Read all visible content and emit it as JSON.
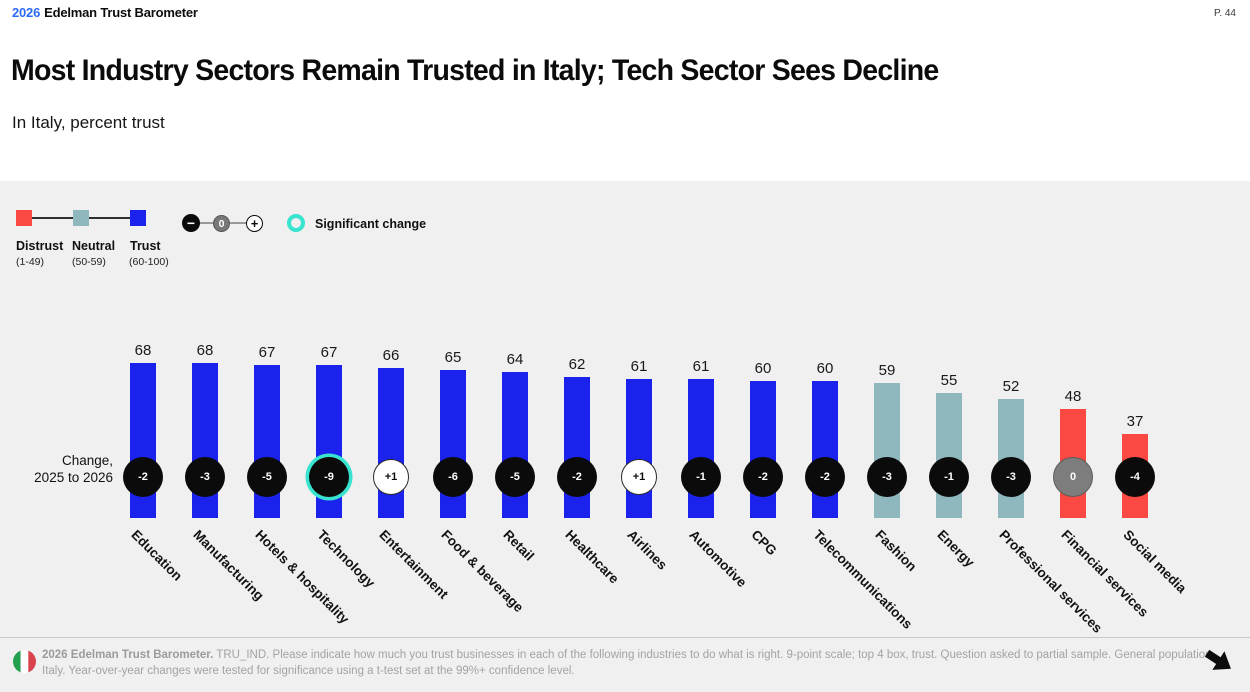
{
  "header": {
    "year": "2026",
    "brand": "Edelman Trust Barometer",
    "page": "P. 44"
  },
  "title": "Most Industry Sectors Remain Trusted in Italy; Tech Sector Sees Decline",
  "subtitle": "In Italy, percent trust",
  "legend": {
    "scale": [
      {
        "label": "Distrust",
        "range": "(1-49)",
        "color": "#fa4843"
      },
      {
        "label": "Neutral",
        "range": "(50-59)",
        "color": "#8fb8be"
      },
      {
        "label": "Trust",
        "range": "(60-100)",
        "color": "#1b22ec"
      }
    ],
    "change_glyph": {
      "minus": "−",
      "zero": "0",
      "plus": "+"
    },
    "significant_label": "Significant change",
    "significant_color": "#38e3cf"
  },
  "chart_data": {
    "type": "bar",
    "title": "Most Industry Sectors Remain Trusted in Italy; Tech Sector Sees Decline",
    "xlabel": "",
    "ylabel": "percent trust",
    "ylim": [
      0,
      100
    ],
    "grid": false,
    "categories": [
      "Education",
      "Manufacturing",
      "Hotels & hospitality",
      "Technology",
      "Entertainment",
      "Food & beverage",
      "Retail",
      "Healthcare",
      "Airlines",
      "Automotive",
      "CPG",
      "Telecommunications",
      "Fashion",
      "Energy",
      "Professional services",
      "Financial services",
      "Social media"
    ],
    "values": [
      68,
      68,
      67,
      67,
      66,
      65,
      64,
      62,
      61,
      61,
      60,
      60,
      59,
      55,
      52,
      48,
      37
    ],
    "changes": [
      "-2",
      "-3",
      "-5",
      "-9",
      "+1",
      "-6",
      "-5",
      "-2",
      "+1",
      "-1",
      "-2",
      "-2",
      "-3",
      "-1",
      "-3",
      "0",
      "-4"
    ],
    "significant": [
      false,
      false,
      false,
      true,
      false,
      false,
      false,
      false,
      false,
      false,
      false,
      false,
      false,
      false,
      false,
      false,
      false
    ],
    "band_thresholds": {
      "trust_min": 60,
      "neutral_min": 50
    },
    "row_label_line1": "Change,",
    "row_label_line2": "2025 to 2026"
  },
  "footer": {
    "source_bold": "2026 Edelman Trust Barometer.",
    "source_line1": " TRU_IND. Please indicate how much you trust businesses in each of the following industries to do what is right. 9-point scale; top 4 box, trust. Question asked to partial sample. General population,",
    "source_line2": "Italy. Year-over-year changes were tested for significance using a t-test set at the 99%+ confidence level.",
    "flag": "italy-flag"
  }
}
